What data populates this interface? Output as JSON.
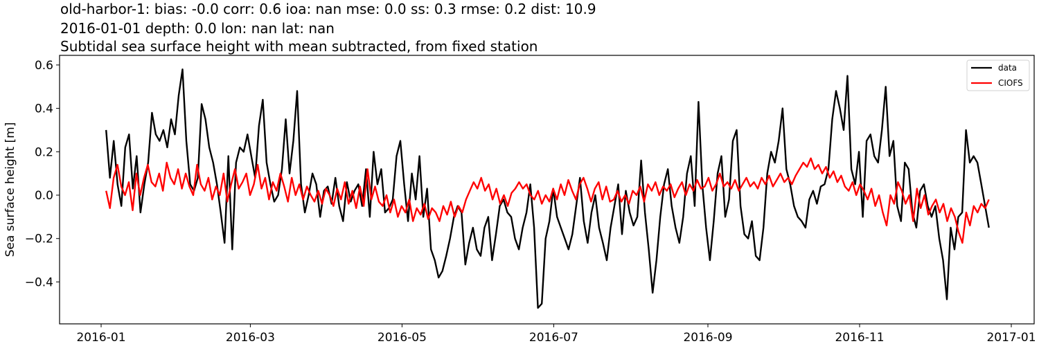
{
  "title": {
    "line1": "old-harbor-1: bias: -0.0  corr: 0.6  ioa: nan  mse: 0.0  ss: 0.3  rmse: 0.2  dist: 10.9",
    "line2": "2016-01-01 depth: 0.0 lon: nan lat: nan",
    "line3": "Subtidal sea surface height with mean subtracted, from fixed station"
  },
  "axes": {
    "ylabel": "Sea surface height [m]",
    "yticks": [
      "0.6",
      "0.4",
      "0.2",
      "0.0",
      "−0.2",
      "−0.4"
    ],
    "xticks": [
      "2016-01",
      "2016-03",
      "2016-05",
      "2016-07",
      "2016-09",
      "2016-11",
      "2017-01"
    ]
  },
  "legend": {
    "items": [
      {
        "label": "data",
        "color": "#000000"
      },
      {
        "label": "CIOFS",
        "color": "#ff0000"
      }
    ]
  },
  "colors": {
    "data": "#000000",
    "model": "#ff0000"
  },
  "chart_data": {
    "type": "line",
    "title": "old-harbor-1: bias: -0.0  corr: 0.6  ioa: nan  mse: 0.0  ss: 0.3  rmse: 0.2  dist: 10.9 / 2016-01-01 depth: 0.0 lon: nan lat: nan / Subtidal sea surface height with mean subtracted, from fixed station",
    "xlabel": "",
    "ylabel": "Sea surface height [m]",
    "ylim": [
      -0.58,
      0.64
    ],
    "xlim": [
      "2015-12-20",
      "2017-01-10"
    ],
    "grid": false,
    "legend_position": "upper right",
    "x_day_of_year_start": 2,
    "x_step_days": 4,
    "series": [
      {
        "name": "data",
        "color": "#000000",
        "values": [
          0.3,
          0.08,
          0.25,
          0.05,
          -0.05,
          0.22,
          0.28,
          0.03,
          0.18,
          -0.08,
          0.05,
          0.15,
          0.38,
          0.28,
          0.25,
          0.3,
          0.22,
          0.35,
          0.28,
          0.46,
          0.58,
          0.25,
          0.05,
          0.02,
          0.08,
          0.42,
          0.35,
          0.22,
          0.15,
          0.05,
          -0.08,
          -0.22,
          0.18,
          -0.25,
          0.15,
          0.22,
          0.2,
          0.28,
          0.18,
          0.08,
          0.32,
          0.44,
          0.15,
          0.05,
          -0.03,
          0.0,
          0.12,
          0.35,
          0.1,
          0.25,
          0.48,
          0.05,
          -0.08,
          0.0,
          0.1,
          0.05,
          -0.1,
          0.02,
          0.04,
          -0.04,
          0.08,
          -0.05,
          -0.12,
          0.06,
          -0.03,
          0.02,
          0.05,
          -0.05,
          0.12,
          -0.1,
          0.2,
          0.05,
          0.12,
          -0.08,
          -0.06,
          -0.02,
          0.18,
          0.25,
          0.05,
          -0.12,
          0.1,
          -0.02,
          0.18,
          -0.1,
          0.03,
          -0.25,
          -0.3,
          -0.38,
          -0.35,
          -0.28,
          -0.2,
          -0.1,
          -0.05,
          -0.08,
          -0.32,
          -0.22,
          -0.15,
          -0.25,
          -0.28,
          -0.15,
          -0.1,
          -0.3,
          -0.18,
          -0.05,
          -0.02,
          -0.08,
          -0.1,
          -0.2,
          -0.25,
          -0.15,
          -0.08,
          0.05,
          -0.15,
          -0.52,
          -0.5,
          -0.2,
          -0.12,
          0.03,
          -0.1,
          -0.15,
          -0.2,
          -0.25,
          -0.18,
          -0.05,
          0.08,
          -0.12,
          -0.22,
          -0.08,
          0.0,
          -0.15,
          -0.22,
          -0.3,
          -0.15,
          -0.05,
          0.05,
          -0.18,
          0.02,
          -0.08,
          -0.14,
          -0.1,
          0.16,
          -0.08,
          -0.25,
          -0.45,
          -0.3,
          -0.1,
          0.05,
          0.12,
          -0.05,
          -0.15,
          -0.22,
          -0.1,
          0.1,
          0.18,
          -0.05,
          0.43,
          0.05,
          -0.15,
          -0.3,
          -0.12,
          0.1,
          0.18,
          -0.1,
          -0.02,
          0.25,
          0.3,
          -0.05,
          -0.18,
          -0.2,
          -0.12,
          -0.28,
          -0.3,
          -0.15,
          0.1,
          0.2,
          0.15,
          0.25,
          0.4,
          0.12,
          0.05,
          -0.05,
          -0.1,
          -0.12,
          -0.15,
          -0.02,
          0.02,
          -0.04,
          0.04,
          0.05,
          0.12,
          0.35,
          0.48,
          0.4,
          0.3,
          0.55,
          0.12,
          0.05,
          0.2,
          -0.1,
          0.25,
          0.28,
          0.18,
          0.15,
          0.3,
          0.5,
          0.18,
          0.25,
          -0.05,
          -0.12,
          0.15,
          0.12,
          -0.08,
          -0.15,
          0.02,
          0.05,
          -0.05,
          -0.1,
          -0.05,
          -0.2,
          -0.3,
          -0.48,
          -0.15,
          -0.25,
          -0.1,
          -0.08,
          0.3,
          0.15,
          0.18,
          0.15,
          0.05,
          -0.05,
          -0.15
        ]
      },
      {
        "name": "CIOFS",
        "color": "#ff0000",
        "values": [
          0.02,
          -0.06,
          0.08,
          0.14,
          0.04,
          0.0,
          0.06,
          -0.07,
          0.1,
          0.0,
          0.08,
          0.14,
          0.06,
          0.04,
          0.1,
          0.02,
          0.15,
          0.08,
          0.05,
          0.12,
          0.03,
          0.1,
          0.04,
          0.0,
          0.14,
          0.05,
          0.02,
          0.08,
          -0.02,
          0.04,
          0.0,
          0.1,
          -0.03,
          0.05,
          0.12,
          0.03,
          0.06,
          0.1,
          0.0,
          0.05,
          0.14,
          0.03,
          0.08,
          -0.02,
          0.06,
          0.02,
          0.1,
          0.04,
          -0.03,
          0.08,
          0.0,
          0.05,
          -0.02,
          0.04,
          0.0,
          -0.03,
          0.02,
          -0.04,
          0.03,
          0.0,
          -0.05,
          0.03,
          -0.02,
          0.06,
          -0.04,
          0.02,
          -0.06,
          0.04,
          -0.05,
          0.12,
          -0.02,
          0.04,
          -0.03,
          -0.05,
          0.0,
          -0.08,
          -0.02,
          -0.1,
          -0.05,
          -0.08,
          -0.02,
          -0.12,
          -0.06,
          -0.09,
          -0.04,
          -0.11,
          -0.06,
          -0.08,
          -0.12,
          -0.05,
          -0.09,
          -0.03,
          -0.1,
          -0.05,
          -0.08,
          -0.02,
          0.02,
          0.06,
          0.03,
          0.08,
          0.02,
          0.05,
          -0.02,
          0.03,
          -0.04,
          0.0,
          -0.05,
          0.01,
          0.03,
          0.06,
          0.03,
          0.05,
          0.0,
          -0.02,
          0.02,
          -0.04,
          0.0,
          -0.03,
          0.03,
          -0.02,
          0.05,
          0.0,
          0.07,
          0.02,
          -0.02,
          0.05,
          0.08,
          0.03,
          -0.03,
          0.03,
          0.06,
          -0.02,
          0.04,
          -0.03,
          -0.02,
          0.02,
          -0.03,
          0.0,
          -0.04,
          0.02,
          0.0,
          0.04,
          -0.03,
          0.05,
          0.02,
          0.06,
          0.0,
          0.04,
          0.02,
          0.05,
          -0.01,
          0.03,
          0.06,
          0.0,
          0.05,
          0.02,
          0.07,
          0.03,
          0.04,
          0.08,
          0.02,
          0.05,
          0.1,
          0.04,
          0.06,
          0.03,
          0.07,
          0.02,
          0.05,
          0.08,
          0.04,
          0.06,
          0.03,
          0.08,
          0.05,
          0.09,
          0.04,
          0.07,
          0.1,
          0.06,
          0.08,
          0.05,
          0.09,
          0.12,
          0.15,
          0.13,
          0.17,
          0.12,
          0.14,
          0.1,
          0.13,
          0.08,
          0.11,
          0.06,
          0.09,
          0.04,
          0.02,
          0.06,
          0.0,
          0.05,
          0.02,
          -0.02,
          0.03,
          -0.05,
          0.0,
          -0.08,
          -0.14,
          0.0,
          -0.04,
          0.06,
          0.02,
          -0.04,
          0.0,
          -0.12,
          0.03,
          -0.06,
          0.0,
          -0.09,
          -0.05,
          -0.02,
          -0.08,
          -0.04,
          -0.12,
          -0.06,
          -0.1,
          -0.17,
          -0.22,
          -0.08,
          -0.14,
          -0.05,
          -0.08,
          -0.04,
          -0.06,
          -0.02
        ]
      }
    ]
  }
}
